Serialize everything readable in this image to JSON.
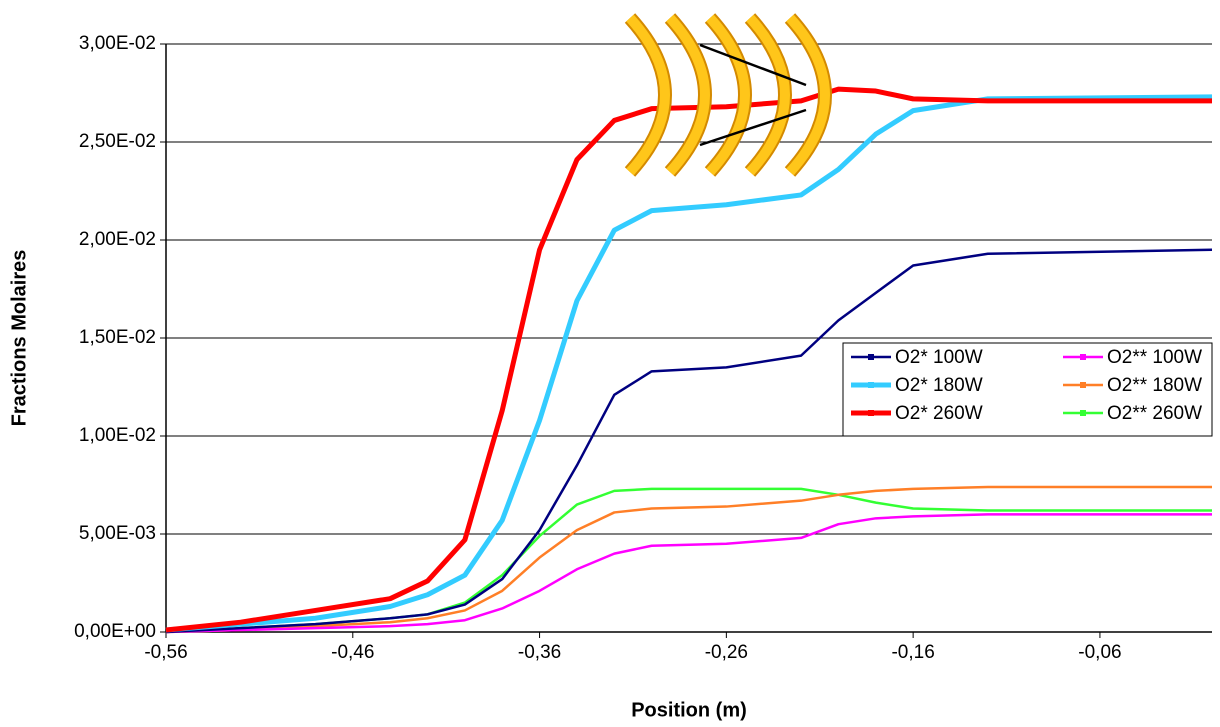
{
  "chart_data": {
    "type": "line",
    "x_label": "Position (m)",
    "y_label": "Fractions Molaires",
    "x": [
      -0.56,
      -0.52,
      -0.48,
      -0.44,
      -0.42,
      -0.4,
      -0.38,
      -0.36,
      -0.34,
      -0.32,
      -0.3,
      -0.26,
      -0.22,
      -0.2,
      -0.18,
      -0.16,
      -0.12,
      0
    ],
    "series": [
      {
        "name": "O2* 100W",
        "color": "#000080",
        "values": [
          0,
          0.0002,
          0.0004,
          0.0007,
          0.0009,
          0.0014,
          0.0027,
          0.0052,
          0.0085,
          0.0121,
          0.0133,
          0.0135,
          0.0141,
          0.0159,
          0.0173,
          0.0187,
          0.0193,
          0.0195
        ]
      },
      {
        "name": "O2* 180W",
        "color": "#33ccff",
        "values": [
          0.0001,
          0.0004,
          0.0007,
          0.0013,
          0.0019,
          0.0029,
          0.0057,
          0.0108,
          0.0169,
          0.0205,
          0.0215,
          0.0218,
          0.0223,
          0.0236,
          0.0254,
          0.0266,
          0.0272,
          0.0273
        ]
      },
      {
        "name": "O2* 260W",
        "color": "#ff0000",
        "values": [
          0.0001,
          0.0005,
          0.0011,
          0.0017,
          0.0026,
          0.0047,
          0.0113,
          0.0195,
          0.0241,
          0.0261,
          0.0267,
          0.0268,
          0.0271,
          0.0277,
          0.0276,
          0.0272,
          0.0271,
          0.0271
        ]
      },
      {
        "name": "O2** 100W",
        "color": "#ff00ff",
        "values": [
          0,
          0.0001,
          0.0002,
          0.0003,
          0.0004,
          0.0006,
          0.0012,
          0.0021,
          0.0032,
          0.004,
          0.0044,
          0.0045,
          0.0048,
          0.0055,
          0.0058,
          0.0059,
          0.006,
          0.006
        ]
      },
      {
        "name": "O2** 180W",
        "color": "#ff7f27",
        "values": [
          0,
          0.0001,
          0.0003,
          0.0005,
          0.0007,
          0.0011,
          0.0021,
          0.0038,
          0.0052,
          0.0061,
          0.0063,
          0.0064,
          0.0067,
          0.007,
          0.0072,
          0.0073,
          0.0074,
          0.0074
        ]
      },
      {
        "name": "O2** 260W",
        "color": "#33ff33",
        "values": [
          0,
          0.0002,
          0.0004,
          0.0007,
          0.0009,
          0.0015,
          0.0029,
          0.0049,
          0.0065,
          0.0072,
          0.0073,
          0.0073,
          0.0073,
          0.007,
          0.0066,
          0.0063,
          0.0062,
          0.0062
        ]
      }
    ],
    "xlim": [
      -0.56,
      0
    ],
    "xticks": [
      {
        "value": -0.56,
        "label": "-0,56"
      },
      {
        "value": -0.46,
        "label": "-0,46"
      },
      {
        "value": -0.36,
        "label": "-0,36"
      },
      {
        "value": -0.26,
        "label": "-0,26"
      },
      {
        "value": -0.16,
        "label": "-0,16"
      },
      {
        "value": -0.06,
        "label": "-0,06"
      }
    ],
    "ylim": [
      0,
      0.03
    ],
    "yticks": [
      {
        "value": 0,
        "label": "0,00E+00"
      },
      {
        "value": 0.005,
        "label": "5,00E-03"
      },
      {
        "value": 0.01,
        "label": "1,00E-02"
      },
      {
        "value": 0.015,
        "label": "1,50E-02"
      },
      {
        "value": 0.02,
        "label": "2,00E-02"
      },
      {
        "value": 0.025,
        "label": "2,50E-02"
      },
      {
        "value": 0.03,
        "label": "3,00E-02"
      }
    ],
    "grid": true,
    "legend_position": "right"
  }
}
